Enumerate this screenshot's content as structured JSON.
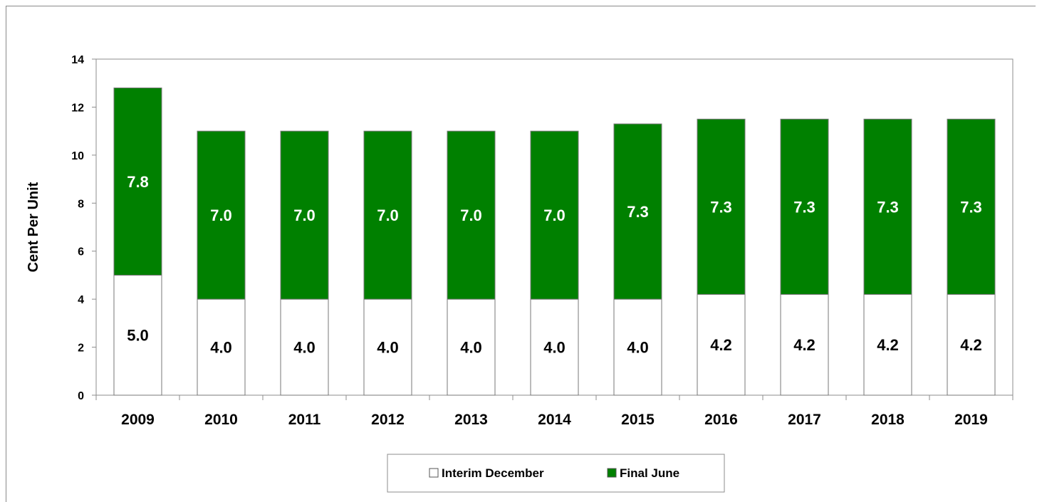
{
  "chart_data": {
    "type": "bar",
    "stacked": true,
    "categories": [
      "2009",
      "2010",
      "2011",
      "2012",
      "2013",
      "2014",
      "2015",
      "2016",
      "2017",
      "2018",
      "2019"
    ],
    "series": [
      {
        "name": "Interim December",
        "color": "#ffffff",
        "values": [
          5.0,
          4.0,
          4.0,
          4.0,
          4.0,
          4.0,
          4.0,
          4.2,
          4.2,
          4.2,
          4.2
        ],
        "labels": [
          "5.0",
          "4.0",
          "4.0",
          "4.0",
          "4.0",
          "4.0",
          "4.0",
          "4.2",
          "4.2",
          "4.2",
          "4.2"
        ]
      },
      {
        "name": "Final June",
        "color": "#008000",
        "values": [
          7.8,
          7.0,
          7.0,
          7.0,
          7.0,
          7.0,
          7.3,
          7.3,
          7.3,
          7.3,
          7.3
        ],
        "labels": [
          "7.8",
          "7.0",
          "7.0",
          "7.0",
          "7.0",
          "7.0",
          "7.3",
          "7.3",
          "7.3",
          "7.3",
          "7.3"
        ]
      }
    ],
    "ylabel": "Cent Per Unit",
    "ylim": [
      0,
      14
    ],
    "yticks": [
      "0",
      "2",
      "4",
      "6",
      "8",
      "10",
      "12",
      "14"
    ],
    "grid": false,
    "legend_position": "bottom"
  }
}
